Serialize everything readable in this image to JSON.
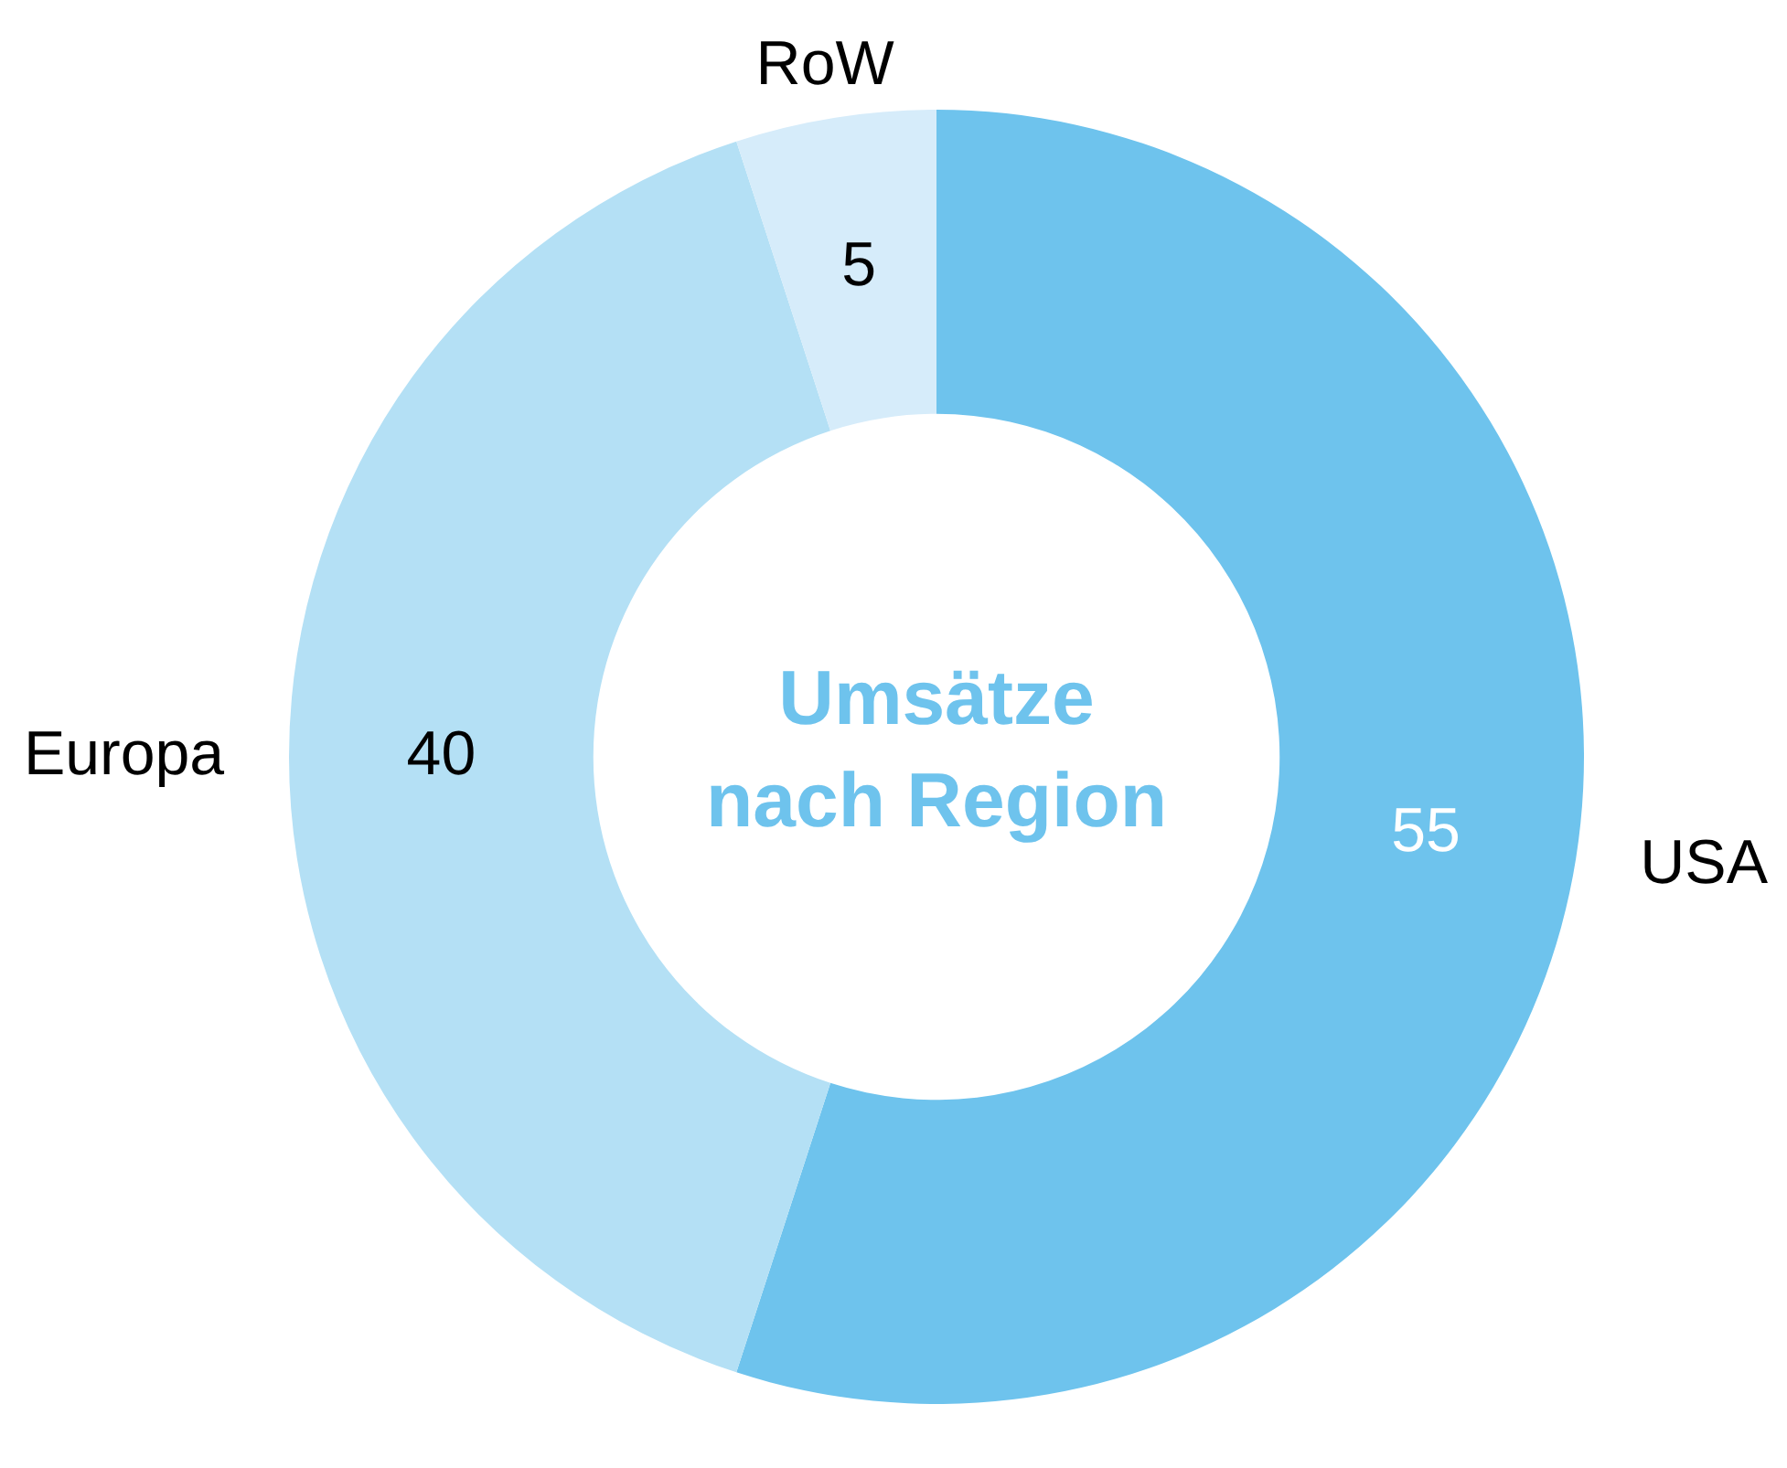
{
  "chart_data": {
    "type": "donut",
    "title": "Umsätze nach Region",
    "categories": [
      "USA",
      "Europa",
      "RoW"
    ],
    "values": [
      55,
      40,
      5
    ],
    "colors": [
      "#6ec3ed",
      "#b4e0f5",
      "#d6ecfa"
    ],
    "data_labels": true,
    "legend": false
  }
}
